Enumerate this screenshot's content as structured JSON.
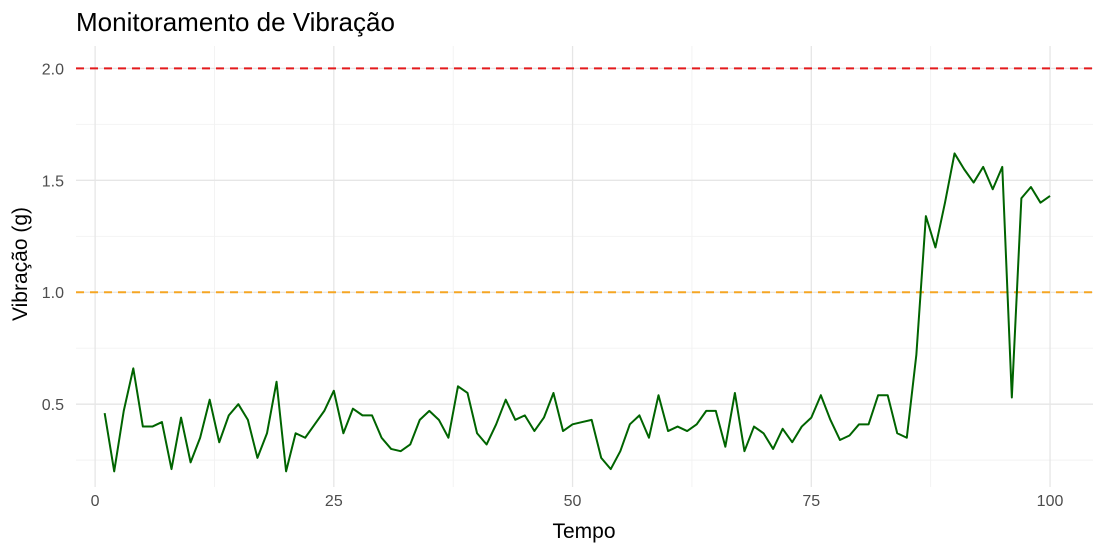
{
  "chart_data": {
    "type": "line",
    "title": "Monitoramento de Vibração",
    "xlabel": "Tempo",
    "ylabel": "Vibração (g)",
    "xlim": [
      -2,
      104.5
    ],
    "ylim": [
      0.13,
      2.1
    ],
    "x_ticks": [
      0,
      25,
      50,
      75,
      100
    ],
    "x_tick_labels": [
      "0",
      "25",
      "50",
      "75",
      "100"
    ],
    "y_ticks": [
      0.5,
      1.0,
      1.5,
      2.0
    ],
    "y_tick_labels": [
      "0.5",
      "1.0",
      "1.5",
      "2.0"
    ],
    "grid": true,
    "thresholds": [
      {
        "name": "threshold-warning",
        "value": 1.0,
        "color": "#f5a623"
      },
      {
        "name": "threshold-critical",
        "value": 2.0,
        "color": "#e31a1c"
      }
    ],
    "series": [
      {
        "name": "Vibração",
        "color": "#006400",
        "x": [
          1,
          2,
          3,
          4,
          5,
          6,
          7,
          8,
          9,
          10,
          11,
          12,
          13,
          14,
          15,
          16,
          17,
          18,
          19,
          20,
          21,
          22,
          23,
          24,
          25,
          26,
          27,
          28,
          29,
          30,
          31,
          32,
          33,
          34,
          35,
          36,
          37,
          38,
          39,
          40,
          41,
          42,
          43,
          44,
          45,
          46,
          47,
          48,
          49,
          50,
          51,
          52,
          53,
          54,
          55,
          56,
          57,
          58,
          59,
          60,
          61,
          62,
          63,
          64,
          65,
          66,
          67,
          68,
          69,
          70,
          71,
          72,
          73,
          74,
          75,
          76,
          77,
          78,
          79,
          80,
          81,
          82,
          83,
          84,
          85,
          86,
          87,
          88,
          89,
          90,
          91,
          92,
          93,
          94,
          95,
          96,
          97,
          98,
          99,
          100
        ],
        "values": [
          0.46,
          0.2,
          0.47,
          0.66,
          0.4,
          0.4,
          0.42,
          0.21,
          0.44,
          0.24,
          0.35,
          0.52,
          0.33,
          0.45,
          0.5,
          0.43,
          0.26,
          0.37,
          0.6,
          0.2,
          0.37,
          0.35,
          0.41,
          0.47,
          0.56,
          0.37,
          0.48,
          0.45,
          0.45,
          0.35,
          0.3,
          0.29,
          0.32,
          0.43,
          0.47,
          0.43,
          0.35,
          0.58,
          0.55,
          0.37,
          0.32,
          0.41,
          0.52,
          0.43,
          0.45,
          0.38,
          0.44,
          0.55,
          0.38,
          0.41,
          0.42,
          0.43,
          0.26,
          0.21,
          0.29,
          0.41,
          0.45,
          0.35,
          0.54,
          0.38,
          0.4,
          0.38,
          0.41,
          0.47,
          0.47,
          0.31,
          0.55,
          0.29,
          0.4,
          0.37,
          0.3,
          0.39,
          0.33,
          0.4,
          0.44,
          0.54,
          0.43,
          0.34,
          0.36,
          0.41,
          0.41,
          0.54,
          0.54,
          0.37,
          0.35,
          0.72,
          1.34,
          1.2,
          1.4,
          1.62,
          1.55,
          1.49,
          1.56,
          1.46,
          1.56,
          0.53,
          1.42,
          1.47,
          1.4,
          1.43
        ]
      }
    ]
  }
}
